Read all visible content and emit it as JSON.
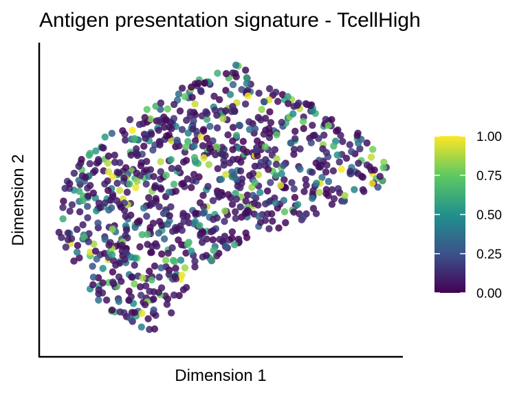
{
  "chart_data": {
    "type": "scatter",
    "title": "Antigen presentation signature - TcellHigh",
    "xlabel": "Dimension 1",
    "ylabel": "Dimension 2",
    "axis_ticks": false,
    "grid": false,
    "xlim": [
      -1,
      1
    ],
    "ylim": [
      -1,
      1
    ],
    "point_count": 950,
    "fraction_above_0_5": 0.22,
    "colorscale": {
      "name": "viridis",
      "range": [
        0,
        1
      ],
      "ticks": [
        "0.00",
        "0.25",
        "0.50",
        "0.75",
        "1.00"
      ],
      "stops": [
        "#440154",
        "#3b528b",
        "#21918c",
        "#5ec962",
        "#fde725"
      ]
    },
    "legend_position": "right",
    "point_opacity": 0.85
  }
}
